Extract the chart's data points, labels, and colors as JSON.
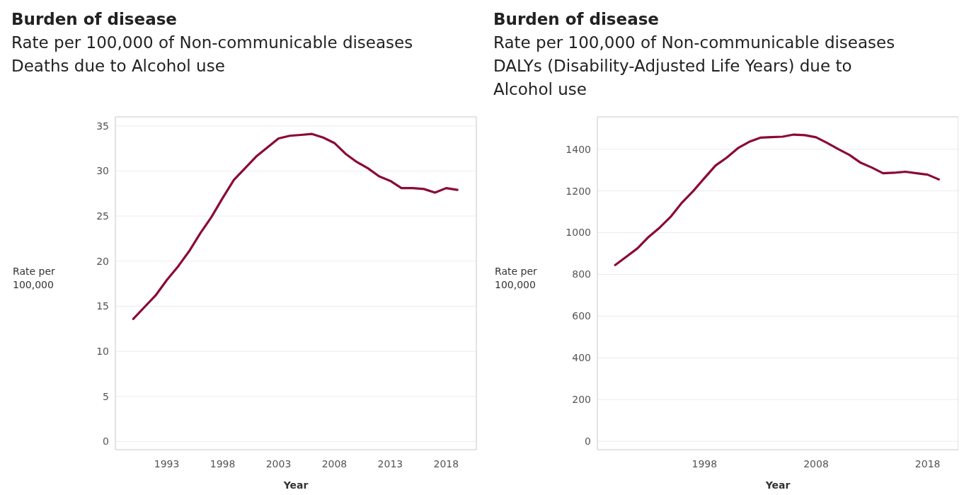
{
  "chart_data": [
    {
      "type": "line",
      "title": "Burden of disease",
      "subtitle": "Rate per 100,000 of Non-communicable diseases\nDeaths due to Alcohol use",
      "xlabel": "Year",
      "ylabel": "Rate per\n100,000",
      "grid": "y",
      "xlim": [
        1988.4,
        2020.7
      ],
      "xticks": [
        1993,
        1998,
        2003,
        2008,
        2013,
        2018
      ],
      "ylim": [
        -0.9,
        36
      ],
      "yticks": [
        0,
        5,
        10,
        15,
        20,
        25,
        30,
        35
      ],
      "x": [
        1990,
        1991,
        1992,
        1993,
        1994,
        1995,
        1996,
        1997,
        1998,
        1999,
        2000,
        2001,
        2002,
        2003,
        2004,
        2005,
        2006,
        2007,
        2008,
        2009,
        2010,
        2011,
        2012,
        2013,
        2014,
        2015,
        2016,
        2017,
        2018,
        2019
      ],
      "series": [
        {
          "color": "#8b0a35",
          "values": [
            13.6,
            14.9,
            16.2,
            17.9,
            19.4,
            21.1,
            23.1,
            24.9,
            27.0,
            29.0,
            30.3,
            31.6,
            32.6,
            33.6,
            33.9,
            34.0,
            34.1,
            33.7,
            33.1,
            31.9,
            31.0,
            30.3,
            29.4,
            28.9,
            28.1,
            28.1,
            28.0,
            27.6,
            28.1,
            27.9
          ]
        }
      ]
    },
    {
      "type": "line",
      "title": "Burden of disease",
      "subtitle": "Rate per 100,000 of Non-communicable diseases\nDALYs (Disability-Adjusted Life Years) due to\nAlcohol use",
      "xlabel": "Year",
      "ylabel": "Rate per\n100,000",
      "grid": "y",
      "xlim": [
        1988.4,
        2020.75
      ],
      "xticks": [
        1998,
        2008,
        2018
      ],
      "ylim": [
        -40,
        1555
      ],
      "yticks": [
        0,
        200,
        400,
        600,
        800,
        1000,
        1200,
        1400
      ],
      "x": [
        1990,
        1991,
        1992,
        1993,
        1994,
        1995,
        1996,
        1997,
        1998,
        1999,
        2000,
        2001,
        2002,
        2003,
        2004,
        2005,
        2006,
        2007,
        2008,
        2009,
        2010,
        2011,
        2012,
        2013,
        2014,
        2015,
        2016,
        2017,
        2018,
        2019
      ],
      "series": [
        {
          "color": "#8b0a35",
          "values": [
            845,
            885,
            925,
            980,
            1025,
            1078,
            1145,
            1200,
            1262,
            1322,
            1360,
            1405,
            1435,
            1455,
            1458,
            1460,
            1470,
            1467,
            1457,
            1430,
            1400,
            1372,
            1335,
            1312,
            1285,
            1287,
            1292,
            1285,
            1278,
            1255
          ]
        }
      ]
    }
  ]
}
